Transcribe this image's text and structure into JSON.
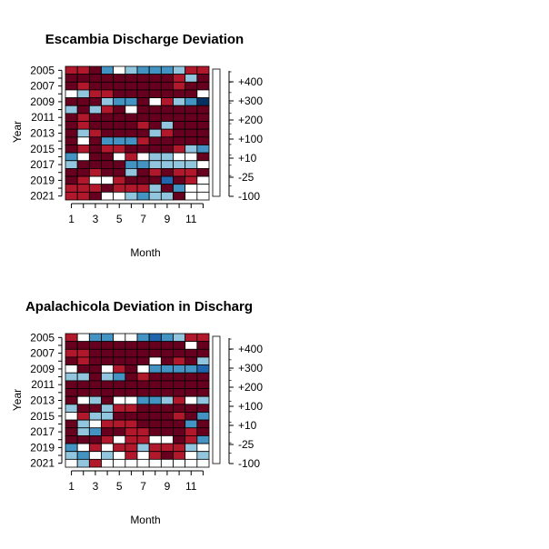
{
  "chart_data": [
    {
      "type": "heatmap",
      "title": "Escambia Discharge Deviation",
      "xlabel": "Month",
      "ylabel": "Year",
      "x_tick_labels": [
        "1",
        "3",
        "5",
        "7",
        "9",
        "11"
      ],
      "y_tick_labels": [
        "2005",
        "2007",
        "2009",
        "2011",
        "2013",
        "2015",
        "2017",
        "2019",
        "2021"
      ],
      "x": [
        1,
        2,
        3,
        4,
        5,
        6,
        7,
        8,
        9,
        10,
        11,
        12
      ],
      "y": [
        2005,
        2006,
        2007,
        2008,
        2009,
        2010,
        2011,
        2012,
        2013,
        2014,
        2015,
        2016,
        2017,
        2018,
        2019,
        2020,
        2021
      ],
      "legend_labels": [
        "+400",
        "+300",
        "+200",
        "+100",
        "+10",
        "-25",
        "-100"
      ],
      "values": [
        [
          -60,
          -60,
          -90,
          150,
          0,
          50,
          150,
          150,
          100,
          50,
          -60,
          -60
        ],
        [
          -90,
          -90,
          -90,
          -90,
          -90,
          -90,
          -90,
          -90,
          -90,
          -60,
          50,
          -90
        ],
        [
          -90,
          -60,
          -90,
          -90,
          -90,
          -90,
          -90,
          -90,
          -90,
          -60,
          -90,
          -90
        ],
        [
          0,
          50,
          -60,
          -60,
          -90,
          -90,
          -90,
          -90,
          -90,
          -90,
          -90,
          0
        ],
        [
          -90,
          -90,
          -90,
          50,
          150,
          150,
          -90,
          0,
          -60,
          50,
          150,
          500
        ],
        [
          50,
          -90,
          50,
          -60,
          -90,
          0,
          -90,
          -90,
          -90,
          -90,
          -90,
          -90
        ],
        [
          -90,
          -60,
          -90,
          -90,
          -90,
          -90,
          -90,
          -90,
          -90,
          -90,
          -90,
          -90
        ],
        [
          -90,
          -60,
          -90,
          -90,
          -90,
          -90,
          -60,
          -90,
          50,
          -90,
          -90,
          -90
        ],
        [
          -90,
          50,
          -60,
          -90,
          -90,
          -90,
          -90,
          50,
          -60,
          -90,
          -90,
          -90
        ],
        [
          -90,
          0,
          -90,
          150,
          150,
          150,
          -60,
          -90,
          -90,
          -90,
          -90,
          -90
        ],
        [
          -90,
          -60,
          -90,
          -60,
          -60,
          -90,
          -90,
          -90,
          -90,
          -60,
          50,
          150
        ],
        [
          150,
          0,
          -90,
          -90,
          0,
          -60,
          0,
          50,
          50,
          0,
          0,
          -90
        ],
        [
          50,
          -90,
          -90,
          -90,
          -90,
          150,
          150,
          50,
          50,
          50,
          50,
          0
        ],
        [
          -90,
          -90,
          -60,
          -90,
          -90,
          50,
          -90,
          -60,
          -90,
          -60,
          -60,
          -90
        ],
        [
          -90,
          -60,
          0,
          0,
          -60,
          -90,
          -90,
          -90,
          250,
          -90,
          -60,
          0
        ],
        [
          -60,
          -60,
          -60,
          -90,
          -60,
          -60,
          -60,
          50,
          -90,
          150,
          0,
          0
        ],
        [
          -60,
          -60,
          -90,
          0,
          0,
          50,
          150,
          50,
          50,
          -90,
          0,
          0
        ]
      ]
    },
    {
      "type": "heatmap",
      "title": "Apalachicola Deviation in Discharg",
      "xlabel": "Month",
      "ylabel": "Year",
      "x_tick_labels": [
        "1",
        "3",
        "5",
        "7",
        "9",
        "11"
      ],
      "y_tick_labels": [
        "2005",
        "2007",
        "2009",
        "2011",
        "2013",
        "2015",
        "2017",
        "2019",
        "2021"
      ],
      "x": [
        1,
        2,
        3,
        4,
        5,
        6,
        7,
        8,
        9,
        10,
        11,
        12
      ],
      "y": [
        2005,
        2006,
        2007,
        2008,
        2009,
        2010,
        2011,
        2012,
        2013,
        2014,
        2015,
        2016,
        2017,
        2018,
        2019,
        2020,
        2021
      ],
      "legend_labels": [
        "+400",
        "+300",
        "+200",
        "+100",
        "+10",
        "-25",
        "-100"
      ],
      "values": [
        [
          -60,
          0,
          150,
          150,
          0,
          0,
          150,
          250,
          150,
          50,
          -60,
          -60
        ],
        [
          -90,
          -90,
          -90,
          -90,
          -90,
          -90,
          -90,
          -90,
          -90,
          -90,
          0,
          -90
        ],
        [
          -60,
          -60,
          -90,
          -90,
          -90,
          -90,
          -90,
          -90,
          -90,
          -90,
          -90,
          -90
        ],
        [
          -90,
          -60,
          -90,
          -90,
          -90,
          -90,
          -90,
          0,
          -90,
          -60,
          -90,
          50
        ],
        [
          0,
          -90,
          -90,
          0,
          -60,
          -90,
          0,
          150,
          150,
          150,
          150,
          250
        ],
        [
          50,
          50,
          -90,
          50,
          150,
          -90,
          -60,
          -90,
          -90,
          -90,
          -90,
          -90
        ],
        [
          -90,
          -90,
          -90,
          -90,
          -90,
          -90,
          -90,
          -90,
          -90,
          -90,
          -90,
          -90
        ],
        [
          -90,
          -90,
          -90,
          -90,
          -90,
          -90,
          -90,
          -90,
          -90,
          -90,
          -90,
          -90
        ],
        [
          -90,
          0,
          50,
          -90,
          0,
          0,
          150,
          150,
          50,
          -60,
          0,
          50
        ],
        [
          50,
          -90,
          -90,
          50,
          -60,
          -60,
          -90,
          -90,
          -90,
          -90,
          -90,
          -90
        ],
        [
          0,
          -60,
          50,
          50,
          -90,
          -90,
          -90,
          -90,
          -90,
          -60,
          -90,
          150
        ],
        [
          -90,
          50,
          0,
          -60,
          -60,
          -60,
          -90,
          -90,
          -90,
          -90,
          150,
          -90
        ],
        [
          -90,
          50,
          150,
          -90,
          -90,
          -60,
          -60,
          -90,
          -90,
          -90,
          -60,
          -90
        ],
        [
          -90,
          -90,
          -90,
          -60,
          0,
          -60,
          -60,
          0,
          0,
          -90,
          -60,
          150
        ],
        [
          150,
          0,
          -60,
          0,
          -60,
          -60,
          50,
          -60,
          -60,
          -60,
          50,
          0
        ],
        [
          50,
          150,
          0,
          50,
          0,
          -60,
          0,
          -60,
          -90,
          -60,
          0,
          50
        ],
        [
          0,
          50,
          -60,
          0,
          0,
          0,
          0,
          0,
          0,
          0,
          0,
          0
        ]
      ]
    }
  ],
  "colors": {
    "palette": [
      "#67001f",
      "#b2182b",
      "#d6604d",
      "#f4a582",
      "#ffffff",
      "#92c5de",
      "#4393c3",
      "#2166ac",
      "#053061"
    ],
    "heatmap_bins": [
      "#67001f",
      "#b2182b",
      "#d6604d",
      "#ffffff",
      "#92c5de",
      "#4393c3",
      "#2166ac",
      "#053061"
    ],
    "background": "#ffffff",
    "axis": "#000000"
  }
}
